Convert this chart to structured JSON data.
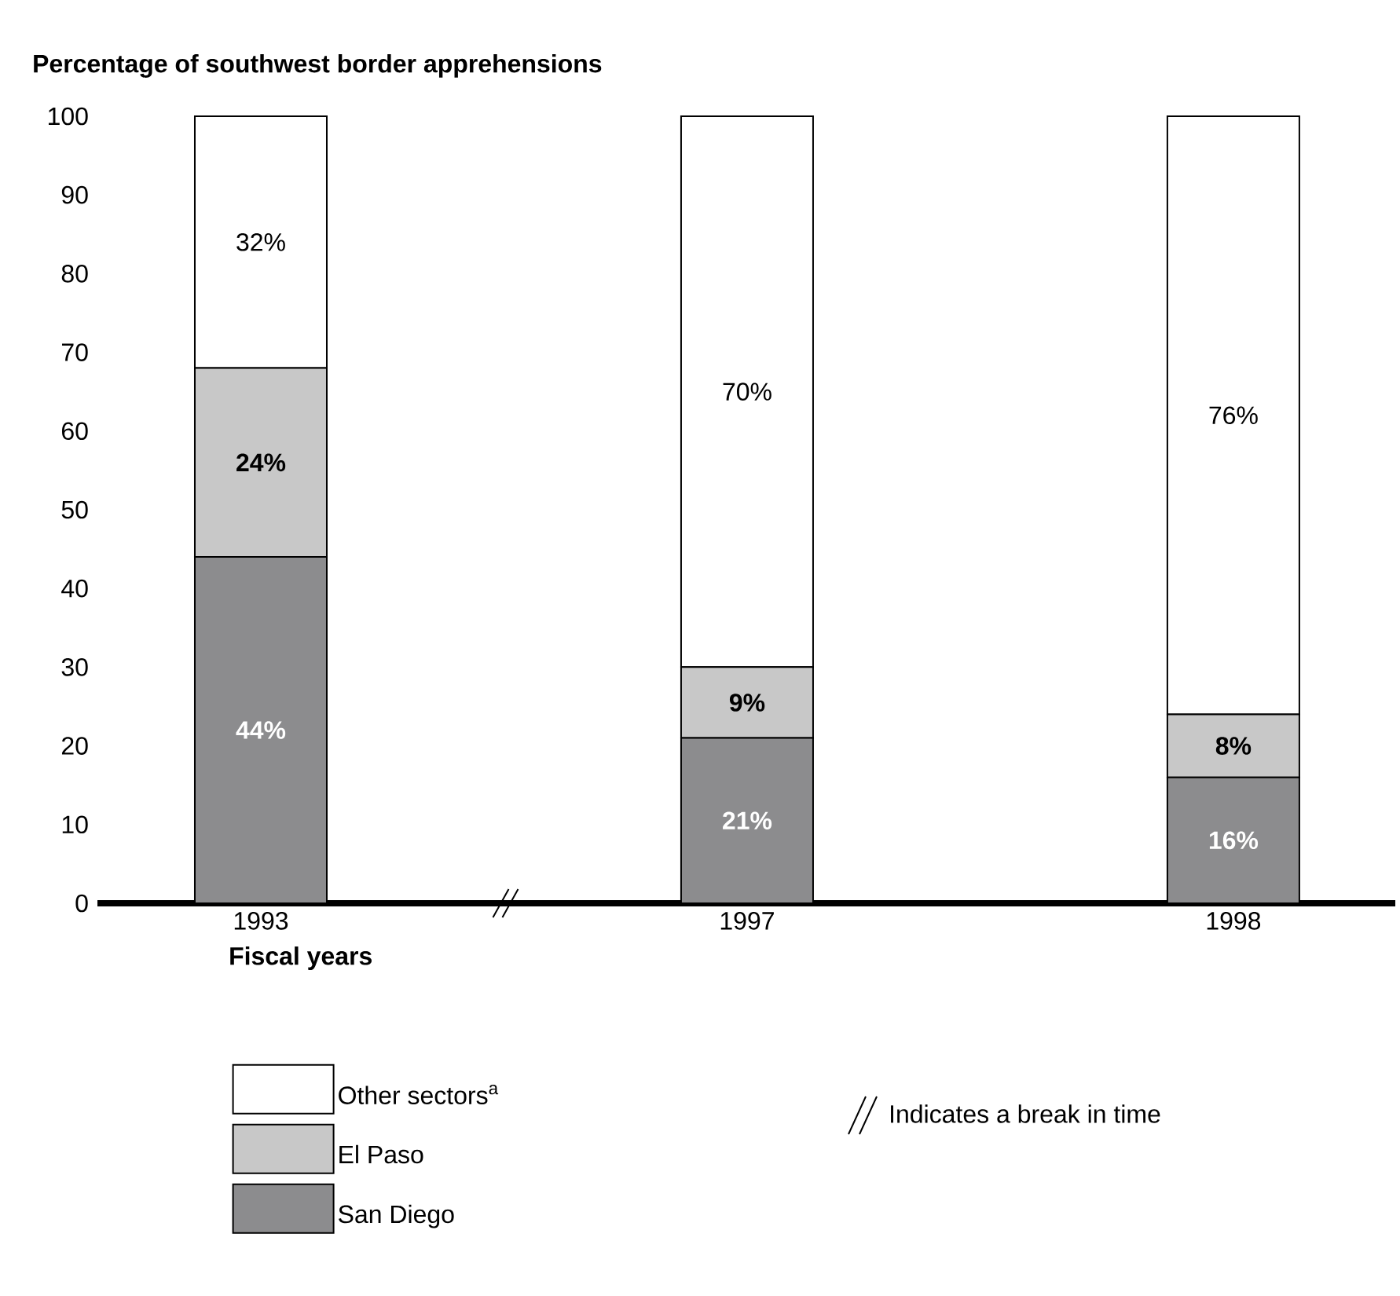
{
  "chart_data": {
    "type": "bar",
    "stacked": true,
    "ylabel": "Percentage of southwest border apprehensions",
    "xlabel": "Fiscal years",
    "categories": [
      "1993",
      "1997",
      "1998"
    ],
    "series": [
      {
        "name": "San Diego",
        "color": "#8c8c8e",
        "values": [
          44,
          21,
          16
        ],
        "value_labels": [
          "44%",
          "21%",
          "16%"
        ]
      },
      {
        "name": "El Paso",
        "color": "#c8c8c8",
        "values": [
          24,
          9,
          8
        ],
        "value_labels": [
          "24%",
          "9%",
          "8%"
        ]
      },
      {
        "name": "Other sectors$^{a}$",
        "color": "#ffffff",
        "values": [
          32,
          70,
          76
        ],
        "value_labels": [
          "32%",
          "70%",
          "76%"
        ]
      }
    ],
    "ylim": [
      0,
      100
    ],
    "yticks": [
      0,
      10,
      20,
      30,
      40,
      50,
      60,
      70,
      80,
      90,
      100
    ],
    "legend": "bottom",
    "annotations": [
      "Indicates a break in time"
    ]
  }
}
